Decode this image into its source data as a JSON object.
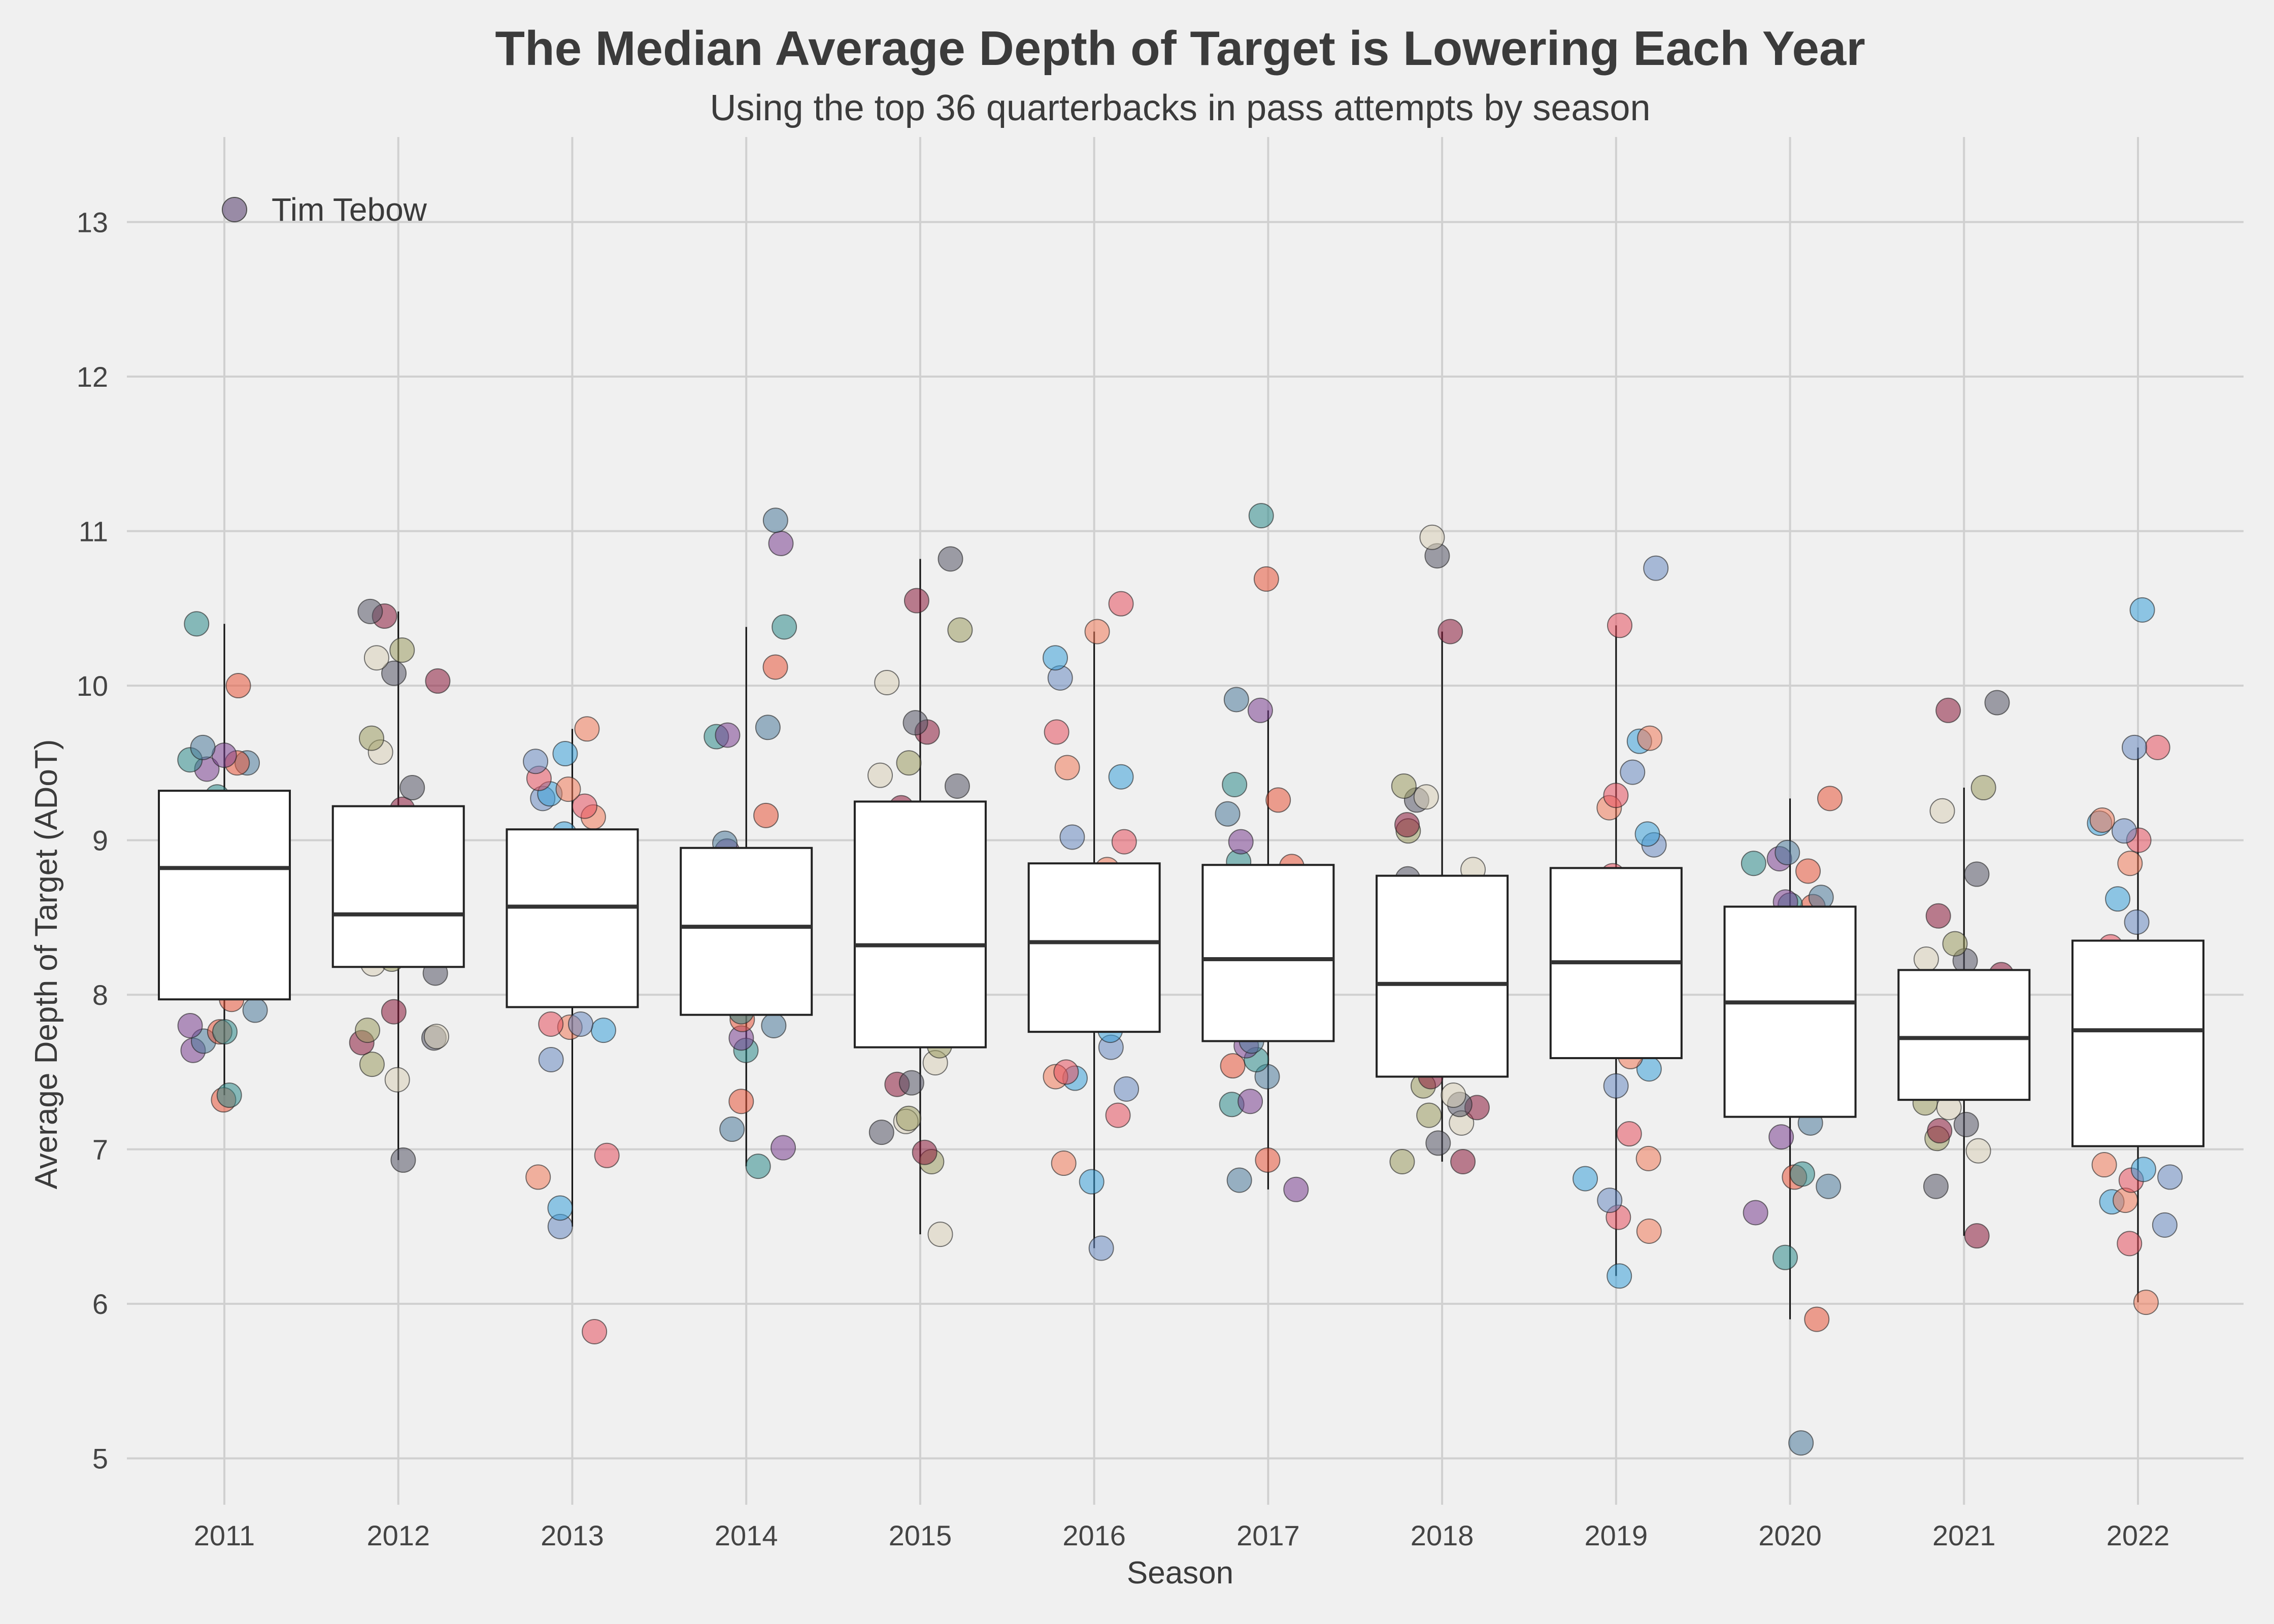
{
  "chart_data": {
    "type": "box",
    "title": "The Median Average Depth of Target is Lowering Each Year",
    "subtitle": "Using the top 36 quarterbacks in pass attempts by season",
    "xlabel": "Season",
    "ylabel": "Average Depth of Target (ADoT)",
    "ylim": [
      4.7,
      13.55
    ],
    "yticks": [
      5,
      6,
      7,
      8,
      9,
      10,
      11,
      12,
      13
    ],
    "grid": true,
    "legend": {
      "label": "Tim Tebow",
      "position": "top-left"
    },
    "categories": [
      "2011",
      "2012",
      "2013",
      "2014",
      "2015",
      "2016",
      "2017",
      "2018",
      "2019",
      "2020",
      "2021",
      "2022"
    ],
    "boxes": [
      {
        "season": "2011",
        "whisker_low": 7.35,
        "q1": 7.97,
        "median": 8.82,
        "q3": 9.32,
        "whisker_high": 10.4
      },
      {
        "season": "2012",
        "whisker_low": 6.93,
        "q1": 8.18,
        "median": 8.52,
        "q3": 9.22,
        "whisker_high": 10.48
      },
      {
        "season": "2013",
        "whisker_low": 6.5,
        "q1": 7.92,
        "median": 8.57,
        "q3": 9.07,
        "whisker_high": 9.72
      },
      {
        "season": "2014",
        "whisker_low": 6.89,
        "q1": 7.87,
        "median": 8.44,
        "q3": 8.95,
        "whisker_high": 10.38
      },
      {
        "season": "2015",
        "whisker_low": 6.45,
        "q1": 7.66,
        "median": 8.32,
        "q3": 9.25,
        "whisker_high": 10.82
      },
      {
        "season": "2016",
        "whisker_low": 6.36,
        "q1": 7.76,
        "median": 8.34,
        "q3": 8.85,
        "whisker_high": 10.35
      },
      {
        "season": "2017",
        "whisker_low": 6.74,
        "q1": 7.7,
        "median": 8.23,
        "q3": 8.84,
        "whisker_high": 9.84
      },
      {
        "season": "2018",
        "whisker_low": 6.92,
        "q1": 7.47,
        "median": 8.07,
        "q3": 8.77,
        "whisker_high": 10.35
      },
      {
        "season": "2019",
        "whisker_low": 6.18,
        "q1": 7.59,
        "median": 8.21,
        "q3": 8.82,
        "whisker_high": 10.39
      },
      {
        "season": "2020",
        "whisker_low": 5.9,
        "q1": 7.21,
        "median": 7.95,
        "q3": 8.57,
        "whisker_high": 9.27
      },
      {
        "season": "2021",
        "whisker_low": 6.44,
        "q1": 7.32,
        "median": 7.72,
        "q3": 8.16,
        "whisker_high": 9.34
      },
      {
        "season": "2022",
        "whisker_low": 6.01,
        "q1": 7.02,
        "median": 7.77,
        "q3": 8.35,
        "whisker_high": 9.6
      }
    ],
    "points": [
      {
        "season": "2011",
        "y": [
          7.32,
          7.35,
          7.64,
          7.7,
          7.76,
          7.76,
          7.8,
          7.9,
          7.97,
          9.28,
          9.46,
          9.5,
          9.5,
          9.52,
          9.55,
          9.6,
          10.0,
          10.4
        ]
      },
      {
        "season": "2012",
        "y": [
          6.93,
          7.45,
          7.55,
          7.69,
          7.72,
          7.73,
          7.77,
          7.89,
          8.14,
          8.2,
          8.23,
          9.2,
          9.34,
          9.57,
          9.66,
          10.03,
          10.08,
          10.18,
          10.23,
          10.45,
          10.48
        ]
      },
      {
        "season": "2013",
        "y": [
          5.82,
          6.5,
          6.62,
          6.82,
          6.96,
          7.58,
          7.77,
          7.79,
          7.81,
          7.81,
          9.04,
          9.15,
          9.22,
          9.27,
          9.3,
          9.33,
          9.4,
          9.51,
          9.56,
          9.72
        ]
      },
      {
        "season": "2014",
        "y": [
          6.89,
          7.01,
          7.13,
          7.31,
          7.64,
          7.72,
          7.8,
          7.84,
          7.89,
          8.93,
          8.98,
          9.16,
          9.67,
          9.68,
          9.73,
          10.12,
          10.38,
          10.92,
          11.07
        ]
      },
      {
        "season": "2015",
        "y": [
          6.45,
          6.92,
          6.98,
          7.11,
          7.18,
          7.2,
          7.42,
          7.43,
          7.56,
          7.67,
          9.21,
          9.35,
          9.42,
          9.5,
          9.7,
          9.76,
          10.02,
          10.36,
          10.55,
          10.82
        ]
      },
      {
        "season": "2016",
        "y": [
          6.36,
          6.79,
          6.91,
          7.22,
          7.39,
          7.46,
          7.47,
          7.5,
          7.66,
          7.77,
          8.81,
          8.99,
          9.02,
          9.41,
          9.47,
          9.7,
          10.05,
          10.18,
          10.35,
          10.53
        ]
      },
      {
        "season": "2017",
        "y": [
          6.74,
          6.8,
          6.93,
          7.29,
          7.31,
          7.47,
          7.54,
          7.58,
          7.67,
          7.7,
          8.83,
          8.86,
          8.99,
          9.17,
          9.26,
          9.36,
          9.84,
          9.91,
          10.69,
          11.1
        ]
      },
      {
        "season": "2018",
        "y": [
          6.92,
          6.92,
          7.04,
          7.17,
          7.22,
          7.27,
          7.29,
          7.35,
          7.41,
          7.47,
          8.75,
          8.81,
          9.06,
          9.1,
          9.26,
          9.28,
          9.35,
          10.35,
          10.84,
          10.96
        ]
      },
      {
        "season": "2019",
        "y": [
          6.18,
          6.47,
          6.56,
          6.67,
          6.81,
          6.94,
          7.1,
          7.41,
          7.52,
          7.6,
          8.77,
          8.97,
          9.04,
          9.21,
          9.29,
          9.44,
          9.64,
          9.66,
          10.39,
          10.76
        ]
      },
      {
        "season": "2020",
        "y": [
          5.1,
          5.9,
          6.3,
          6.59,
          6.76,
          6.82,
          6.84,
          7.08,
          7.17,
          8.57,
          8.58,
          8.6,
          8.63,
          8.8,
          8.85,
          8.88,
          8.92,
          9.27
        ]
      },
      {
        "season": "2021",
        "y": [
          6.44,
          6.76,
          6.99,
          7.07,
          7.12,
          7.16,
          7.27,
          7.3,
          8.13,
          8.22,
          8.23,
          8.33,
          8.51,
          8.78,
          9.19,
          9.34,
          9.84,
          9.89
        ]
      },
      {
        "season": "2022",
        "y": [
          6.01,
          6.39,
          6.51,
          6.66,
          6.67,
          6.8,
          6.82,
          6.87,
          6.9,
          8.31,
          8.47,
          8.62,
          8.85,
          9.0,
          9.06,
          9.11,
          9.13,
          9.6,
          9.6,
          10.49
        ]
      }
    ],
    "colors": {
      "background": "#f0f0f0",
      "grid": "#d0d0d0",
      "box_fill": "#ffffff",
      "box_edge": "#222222",
      "median": "#333333",
      "point_palette": [
        "#e8553a",
        "#6a8bc1",
        "#8b1a3a",
        "#2e8b8b",
        "#3aa0d8",
        "#555566",
        "#7a3f8f",
        "#f07a5a",
        "#d8cfb8",
        "#4c7a9a",
        "#e6505f",
        "#9a9a60"
      ],
      "legend_marker": "#8a7a9a"
    }
  }
}
